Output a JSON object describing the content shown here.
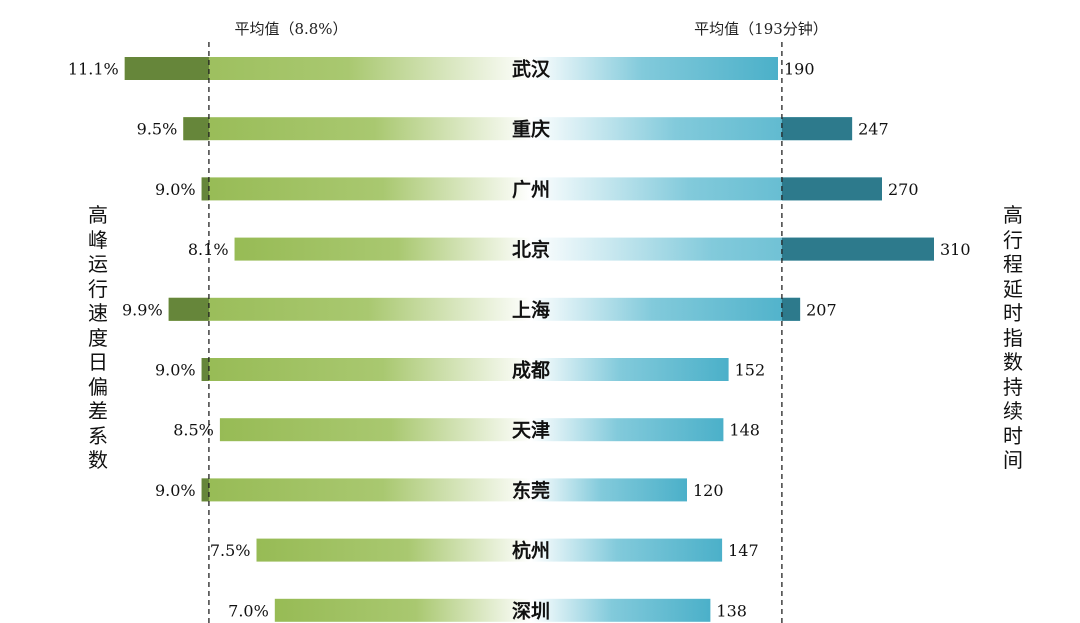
{
  "chart_data": {
    "type": "bar",
    "categories": [
      "武汉",
      "重庆",
      "广州",
      "北京",
      "上海",
      "成都",
      "天津",
      "东莞",
      "杭州",
      "深圳"
    ],
    "left_series": {
      "axis_label": "高峰运行速度日偏差系数",
      "values": [
        11.1,
        9.5,
        9.0,
        8.1,
        9.9,
        9.0,
        8.5,
        9.0,
        7.5,
        7.0
      ],
      "value_labels": [
        "11.1%",
        "9.5%",
        "9.0%",
        "8.1%",
        "9.9%",
        "9.0%",
        "8.5%",
        "9.0%",
        "7.5%",
        "7.0%"
      ],
      "average": 8.8,
      "average_label": "平均值（8.8%）"
    },
    "right_series": {
      "axis_label": "高行程延时指数持续时间",
      "values": [
        190,
        247,
        270,
        310,
        207,
        152,
        148,
        120,
        147,
        138
      ],
      "value_labels": [
        "190",
        "247",
        "270",
        "310",
        "207",
        "152",
        "148",
        "120",
        "147",
        "138"
      ],
      "average": 193,
      "average_label": "平均值（193分钟）"
    },
    "colors": {
      "left_bar": "#97bb55",
      "left_above_average": "#66863a",
      "right_bar": "#4bb0c9",
      "right_above_average": "#2d7a8c",
      "average_line": "#222222"
    }
  }
}
